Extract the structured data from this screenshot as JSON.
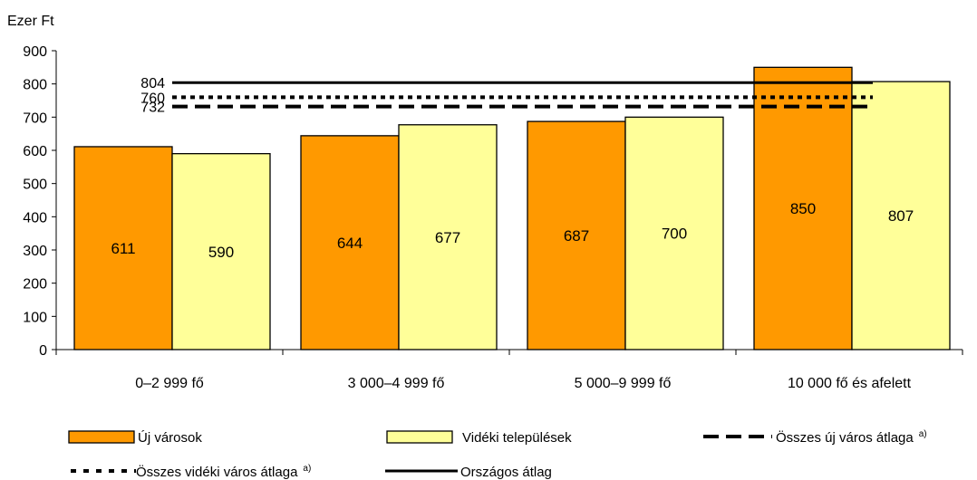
{
  "chart_data": {
    "type": "bar",
    "ylabel": "Ezer Ft",
    "ylim": [
      0,
      900
    ],
    "yticks": [
      0,
      100,
      200,
      300,
      400,
      500,
      600,
      700,
      800,
      900
    ],
    "categories": [
      "0–2 999 fő",
      "3 000–4 999 fő",
      "5 000–9 999 fő",
      "10 000 fő és afelett"
    ],
    "series": [
      {
        "name": "Új városok",
        "color": "#FF9900",
        "values": [
          611,
          644,
          687,
          850
        ]
      },
      {
        "name": "Vidéki települések",
        "color": "#FFFF99",
        "values": [
          590,
          677,
          700,
          807
        ]
      }
    ],
    "reference_lines": [
      {
        "name": "Országos átlag",
        "value": 804,
        "label": "804",
        "style": "solid"
      },
      {
        "name": "Összes vidéki város átlaga",
        "superscript": "a)",
        "value": 760,
        "label": "760",
        "style": "dotted"
      },
      {
        "name": "Összes új város átlaga",
        "superscript": "a)",
        "value": 732,
        "label": "732",
        "style": "dashed"
      }
    ],
    "grid": false,
    "legend_position": "bottom"
  }
}
